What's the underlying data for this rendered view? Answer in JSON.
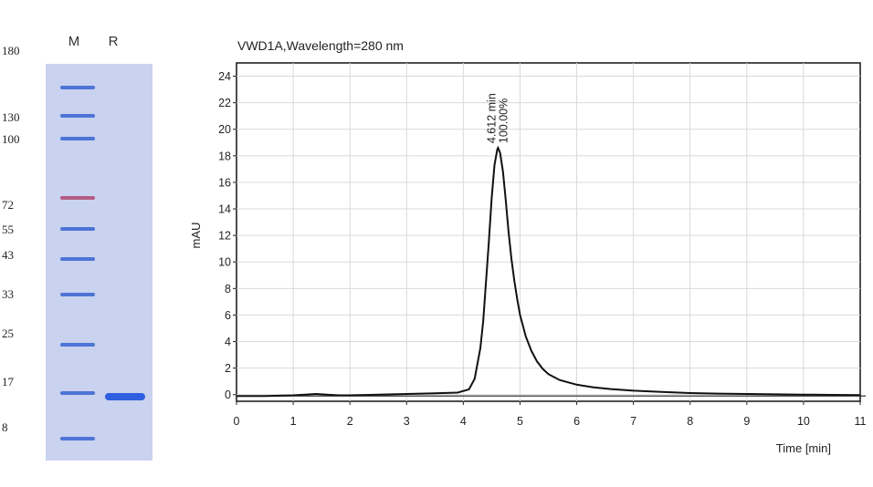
{
  "gel": {
    "lanes": [
      "M",
      "R"
    ],
    "markers": [
      "180",
      "130",
      "100",
      "72",
      "55",
      "43",
      "33",
      "25",
      "17",
      "8"
    ],
    "colors": {
      "background": "#c9d2ee",
      "band": "#4d74d6",
      "band_72": "#b45b84",
      "sample": "#2f5fe0"
    }
  },
  "chart_data": {
    "type": "line",
    "title": "VWD1A,Wavelength=280 nm",
    "xlabel": "Time [min]",
    "ylabel": "mAU",
    "xlim": [
      0,
      11
    ],
    "ylim": [
      -0.5,
      25
    ],
    "xticks": [
      0,
      1,
      2,
      3,
      4,
      5,
      6,
      7,
      8,
      9,
      10,
      11
    ],
    "yticks": [
      0,
      2,
      4,
      6,
      8,
      10,
      12,
      14,
      16,
      18,
      20,
      22,
      24
    ],
    "grid": true,
    "baseline": -0.1,
    "series": [
      {
        "name": "VWD1A",
        "x": [
          0,
          0.5,
          1.0,
          1.2,
          1.4,
          1.6,
          1.8,
          2.0,
          2.5,
          3.0,
          3.5,
          3.9,
          4.1,
          4.2,
          4.3,
          4.35,
          4.4,
          4.45,
          4.5,
          4.55,
          4.6,
          4.612,
          4.65,
          4.7,
          4.75,
          4.8,
          4.85,
          4.9,
          4.95,
          5.0,
          5.1,
          5.2,
          5.3,
          5.4,
          5.5,
          5.7,
          6.0,
          6.3,
          6.6,
          7.0,
          7.5,
          8.0,
          8.5,
          9.0,
          9.5,
          10.0,
          10.5,
          11.0
        ],
        "y": [
          -0.1,
          -0.1,
          -0.05,
          0.0,
          0.05,
          0.0,
          -0.05,
          -0.05,
          0.0,
          0.05,
          0.1,
          0.15,
          0.4,
          1.2,
          3.5,
          5.5,
          8.5,
          11.5,
          14.8,
          17.3,
          18.5,
          18.6,
          18.2,
          16.8,
          14.6,
          12.2,
          10.2,
          8.6,
          7.2,
          6.0,
          4.4,
          3.3,
          2.5,
          1.95,
          1.55,
          1.1,
          0.75,
          0.55,
          0.42,
          0.3,
          0.2,
          0.12,
          0.08,
          0.05,
          0.02,
          0.0,
          -0.02,
          -0.03
        ]
      }
    ],
    "annotations": [
      {
        "x": 4.612,
        "y": 18.6,
        "line1": "4.612 min",
        "line2": "100.00%"
      }
    ]
  }
}
